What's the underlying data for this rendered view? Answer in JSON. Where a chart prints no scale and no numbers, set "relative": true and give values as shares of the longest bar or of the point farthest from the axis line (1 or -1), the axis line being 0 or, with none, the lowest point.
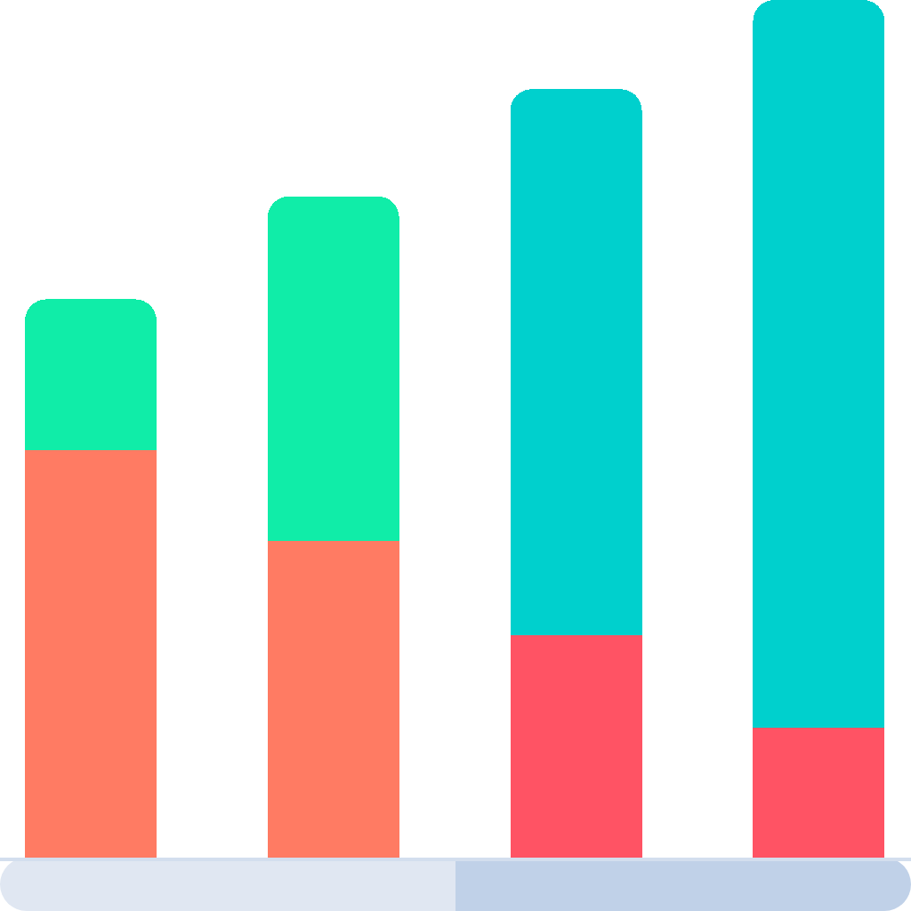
{
  "chart_data": {
    "type": "bar",
    "categories": [
      null,
      null,
      null,
      null
    ],
    "stacked": true,
    "relative": true,
    "series": [
      {
        "colors": [
          "#ff7b63",
          "#ff7b63",
          "#ff5364",
          "#ff5364"
        ],
        "values": [
          0.475,
          0.369,
          0.259,
          0.151
        ]
      },
      {
        "colors": [
          "#10eda8",
          "#10eda8",
          "#00d0cd",
          "#00d0cd"
        ],
        "values": [
          0.176,
          0.402,
          0.637,
          0.849
        ]
      }
    ]
  }
}
